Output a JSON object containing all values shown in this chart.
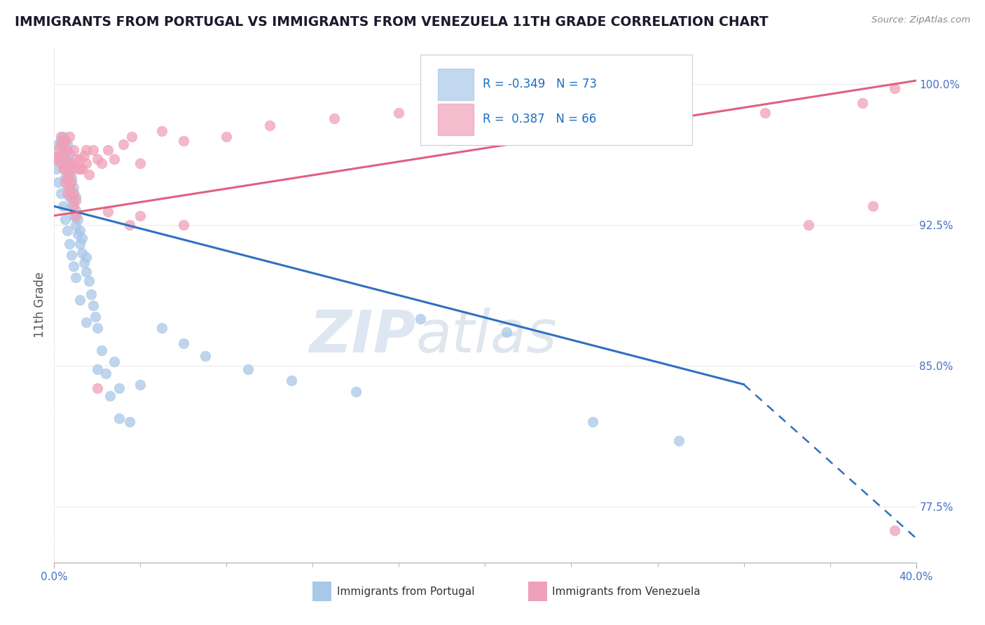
{
  "title": "IMMIGRANTS FROM PORTUGAL VS IMMIGRANTS FROM VENEZUELA 11TH GRADE CORRELATION CHART",
  "source_text": "Source: ZipAtlas.com",
  "ylabel": "11th Grade",
  "ytick_vals": [
    0.775,
    0.85,
    0.925,
    1.0
  ],
  "ytick_labels": [
    "77.5%",
    "85.0%",
    "92.5%",
    "100.0%"
  ],
  "xlim": [
    0.0,
    0.4
  ],
  "ylim": [
    0.745,
    1.02
  ],
  "R_portugal": -0.349,
  "N_portugal": 73,
  "R_venezuela": 0.387,
  "N_venezuela": 66,
  "color_portugal": "#a8c8e8",
  "color_venezuela": "#f0a0b8",
  "line_portugal": "#3070c0",
  "line_venezuela": "#e06080",
  "watermark_zip": "ZIP",
  "watermark_atlas": "atlas",
  "trend_p_x0": 0.0,
  "trend_p_y0": 0.935,
  "trend_p_x1": 0.32,
  "trend_p_y1": 0.84,
  "trend_p_dash_x1": 0.4,
  "trend_p_dash_y1": 0.758,
  "trend_v_x0": 0.0,
  "trend_v_y0": 0.93,
  "trend_v_x1": 0.4,
  "trend_v_y1": 1.002,
  "portugal_x": [
    0.001,
    0.002,
    0.003,
    0.003,
    0.004,
    0.004,
    0.004,
    0.005,
    0.005,
    0.005,
    0.005,
    0.006,
    0.006,
    0.006,
    0.006,
    0.007,
    0.007,
    0.007,
    0.007,
    0.008,
    0.008,
    0.008,
    0.009,
    0.009,
    0.009,
    0.01,
    0.01,
    0.01,
    0.011,
    0.011,
    0.012,
    0.012,
    0.013,
    0.013,
    0.014,
    0.015,
    0.015,
    0.016,
    0.017,
    0.018,
    0.019,
    0.02,
    0.022,
    0.024,
    0.026,
    0.028,
    0.03,
    0.035,
    0.04,
    0.05,
    0.06,
    0.07,
    0.09,
    0.11,
    0.14,
    0.17,
    0.21,
    0.25,
    0.29,
    0.001,
    0.002,
    0.003,
    0.004,
    0.005,
    0.006,
    0.007,
    0.008,
    0.009,
    0.01,
    0.012,
    0.015,
    0.02,
    0.03
  ],
  "portugal_y": [
    0.96,
    0.968,
    0.962,
    0.97,
    0.958,
    0.965,
    0.972,
    0.95,
    0.958,
    0.963,
    0.97,
    0.945,
    0.952,
    0.96,
    0.968,
    0.94,
    0.948,
    0.956,
    0.963,
    0.935,
    0.943,
    0.95,
    0.93,
    0.938,
    0.945,
    0.925,
    0.933,
    0.94,
    0.92,
    0.928,
    0.915,
    0.922,
    0.91,
    0.918,
    0.905,
    0.9,
    0.908,
    0.895,
    0.888,
    0.882,
    0.876,
    0.87,
    0.858,
    0.846,
    0.834,
    0.852,
    0.838,
    0.82,
    0.84,
    0.87,
    0.862,
    0.855,
    0.848,
    0.842,
    0.836,
    0.875,
    0.868,
    0.82,
    0.81,
    0.955,
    0.948,
    0.942,
    0.935,
    0.928,
    0.922,
    0.915,
    0.909,
    0.903,
    0.897,
    0.885,
    0.873,
    0.848,
    0.822
  ],
  "venezuela_x": [
    0.001,
    0.002,
    0.003,
    0.003,
    0.004,
    0.004,
    0.005,
    0.005,
    0.005,
    0.006,
    0.006,
    0.006,
    0.007,
    0.007,
    0.008,
    0.008,
    0.008,
    0.009,
    0.009,
    0.01,
    0.01,
    0.011,
    0.012,
    0.013,
    0.014,
    0.015,
    0.016,
    0.018,
    0.02,
    0.022,
    0.025,
    0.028,
    0.032,
    0.036,
    0.04,
    0.05,
    0.06,
    0.08,
    0.1,
    0.13,
    0.16,
    0.2,
    0.25,
    0.29,
    0.33,
    0.375,
    0.39,
    0.002,
    0.003,
    0.004,
    0.005,
    0.006,
    0.007,
    0.008,
    0.009,
    0.01,
    0.012,
    0.015,
    0.02,
    0.025,
    0.06,
    0.35,
    0.39,
    0.035,
    0.04,
    0.38
  ],
  "venezuela_y": [
    0.96,
    0.965,
    0.958,
    0.972,
    0.962,
    0.97,
    0.955,
    0.963,
    0.97,
    0.95,
    0.958,
    0.965,
    0.945,
    0.952,
    0.94,
    0.948,
    0.955,
    0.935,
    0.942,
    0.93,
    0.938,
    0.955,
    0.96,
    0.955,
    0.962,
    0.958,
    0.952,
    0.965,
    0.96,
    0.958,
    0.965,
    0.96,
    0.968,
    0.972,
    0.958,
    0.975,
    0.97,
    0.972,
    0.978,
    0.982,
    0.985,
    0.978,
    0.975,
    0.98,
    0.985,
    0.99,
    0.998,
    0.962,
    0.968,
    0.955,
    0.948,
    0.942,
    0.972,
    0.958,
    0.965,
    0.96,
    0.955,
    0.965,
    0.838,
    0.932,
    0.925,
    0.925,
    0.762,
    0.925,
    0.93,
    0.935
  ]
}
